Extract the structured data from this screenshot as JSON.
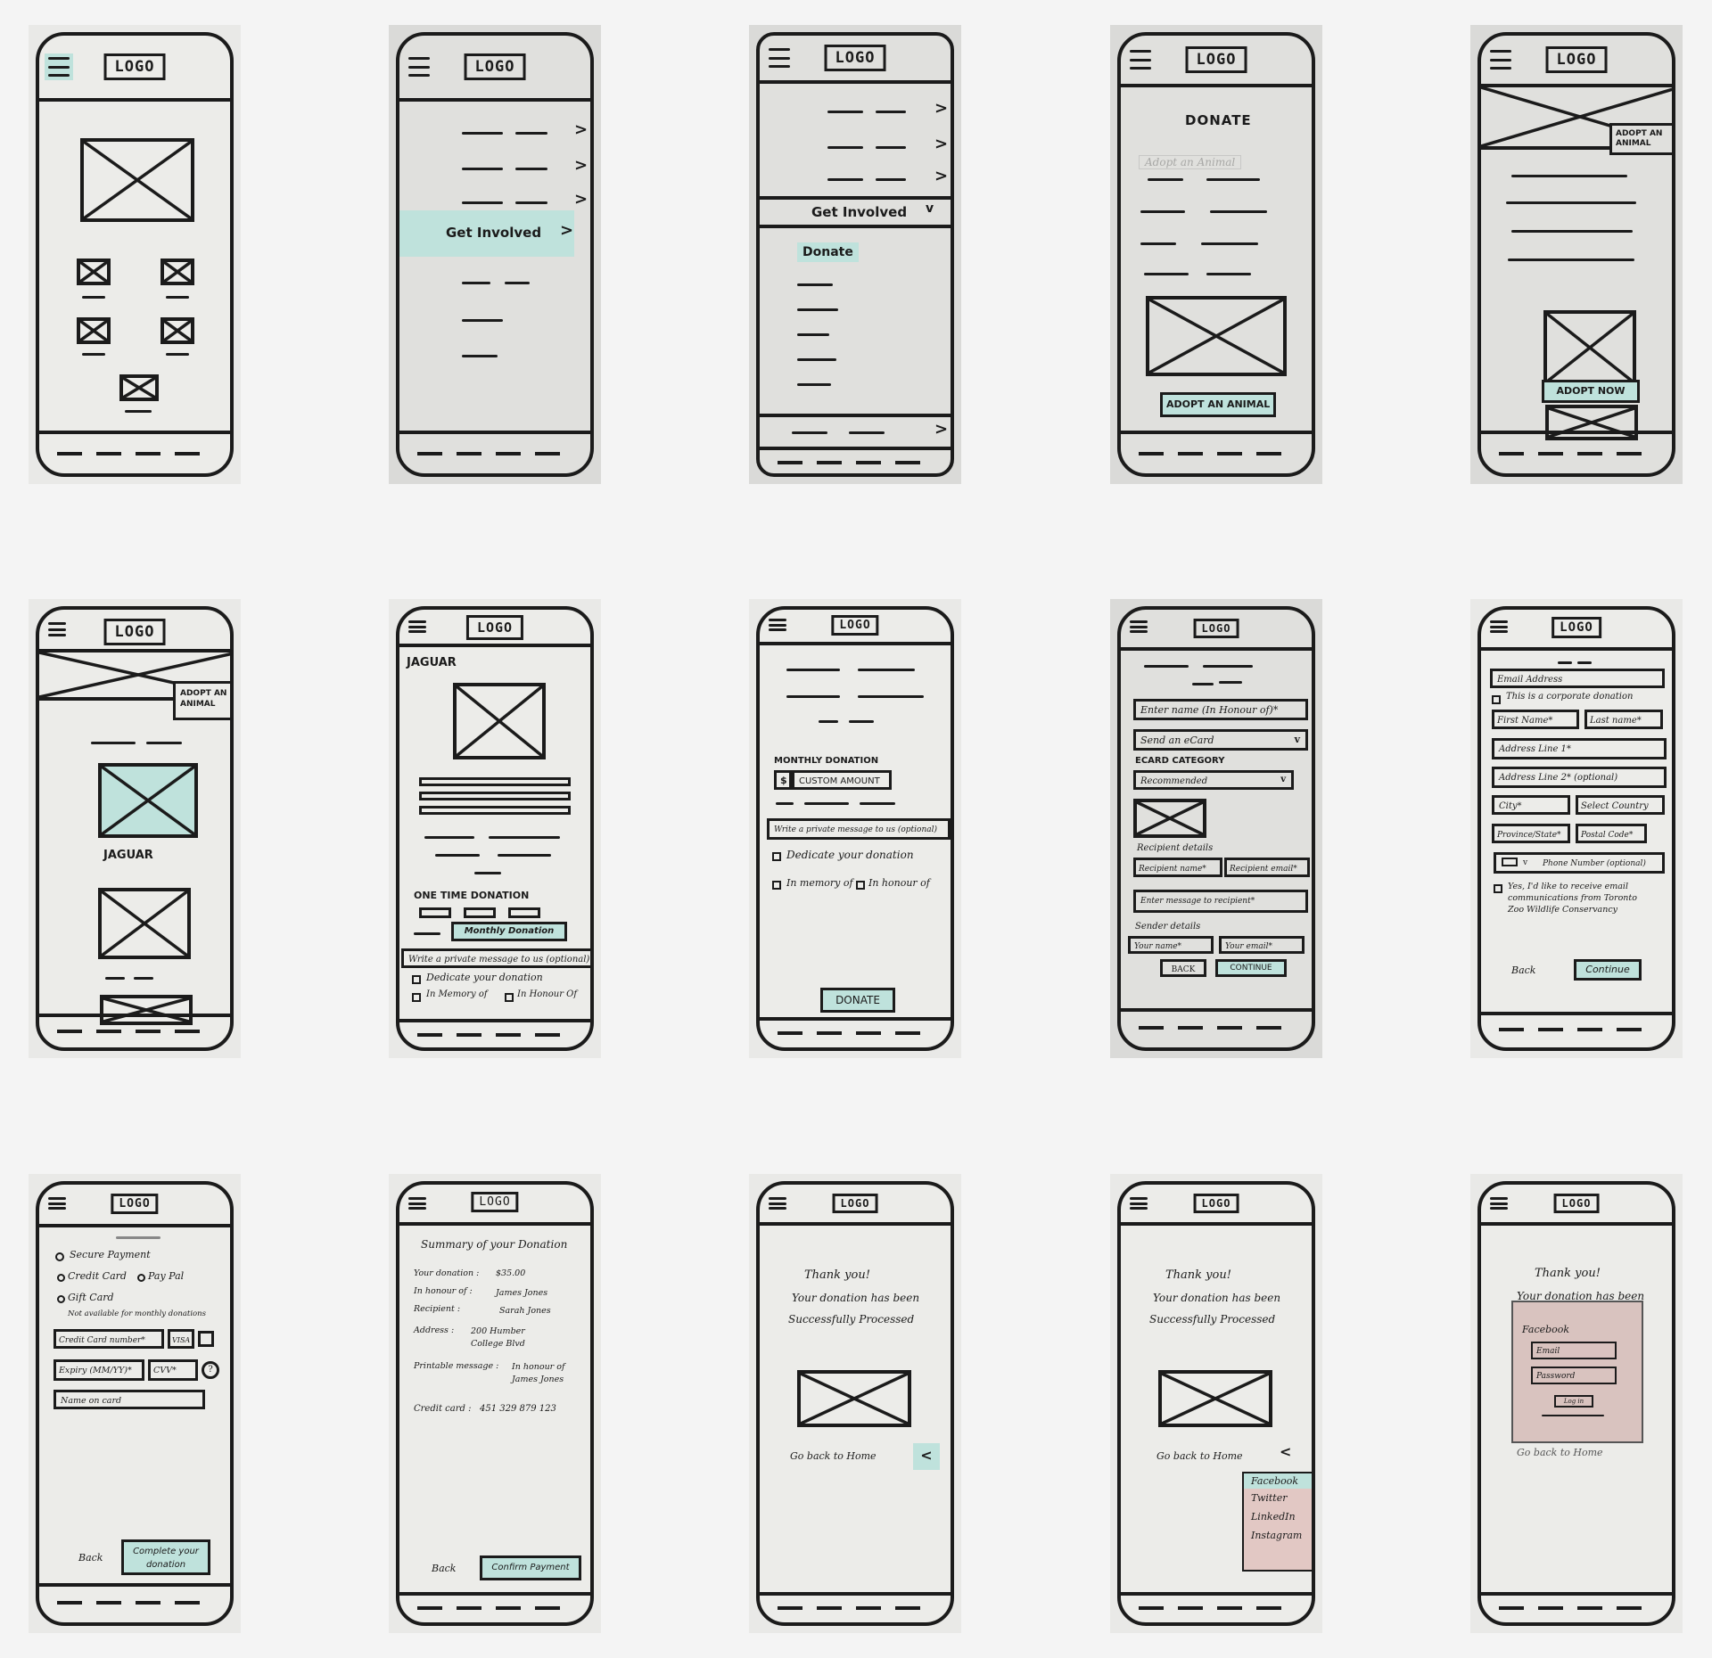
{
  "logo": "LOGO",
  "s2": {
    "menu_item": "Get Involved"
  },
  "s3": {
    "section": "Get Involved",
    "sub_item": "Donate"
  },
  "s4": {
    "title": "DONATE",
    "faded": "Adopt an Animal",
    "button": "ADOPT AN ANIMAL"
  },
  "s5": {
    "banner": "ADOPT AN ANIMAL",
    "button": "ADOPT NOW"
  },
  "s6": {
    "banner": "ADOPT AN ANIMAL",
    "caption": "JAGUAR"
  },
  "s7": {
    "title": "JAGUAR",
    "one_time": "ONE TIME DONATION",
    "monthly_button": "Monthly Donation",
    "message": "Write a private message to us (optional)",
    "dedicate": "Dedicate your donation",
    "in_memory": "In Memory of",
    "in_honour": "In Honour Of"
  },
  "s8": {
    "monthly": "MONTHLY DONATION",
    "currency": "$",
    "custom": "CUSTOM AMOUNT",
    "message": "Write a private message to us (optional)",
    "dedicate": "Dedicate your donation",
    "in_memory": "In memory of",
    "in_honour": "In honour of",
    "donate": "DONATE"
  },
  "s9": {
    "name": "Enter name (In Honour of)*",
    "ecard": "Send an eCard",
    "category_title": "ECARD CATEGORY",
    "category": "Recommended",
    "recipient_details": "Recipient details",
    "recipient_name": "Recipient name*",
    "recipient_email": "Recipient email*",
    "message": "Enter message to recipient*",
    "sender_details": "Sender details",
    "your_name": "Your name*",
    "your_email": "Your email*",
    "back": "BACK",
    "continue": "CONTINUE"
  },
  "s10": {
    "email": "Email Address",
    "corporate": "This is a corporate donation",
    "first": "First Name*",
    "last": "Last name*",
    "addr1": "Address Line 1*",
    "addr2": "Address Line 2* (optional)",
    "city": "City*",
    "country": "Select Country",
    "province": "Province/State*",
    "postal": "Postal Code*",
    "phone": "Phone Number (optional)",
    "opt_in": "Yes, I'd like to receive email communications from Toronto Zoo Wildlife Conservancy",
    "back": "Back",
    "continue": "Continue"
  },
  "s11": {
    "secure": "Secure Payment",
    "credit": "Credit Card",
    "paypal": "Pay Pal",
    "gift": "Gift Card",
    "gift_note": "Not available for monthly donations",
    "card_number": "Credit Card number*",
    "visa": "VISA",
    "expiry": "Expiry (MM/YY)*",
    "cvv": "CVV*",
    "help": "?",
    "name_on_card": "Name on card",
    "back": "Back",
    "complete": "Complete your donation"
  },
  "s12": {
    "title": "Summary of your Donation",
    "rows": [
      {
        "label": "Your donation :",
        "value": "$35.00"
      },
      {
        "label": "In honour of :",
        "value": "James Jones"
      },
      {
        "label": "Recipient :",
        "value": "Sarah Jones"
      },
      {
        "label": "Address :",
        "value": "200 Humber College Blvd"
      },
      {
        "label": "Printable message :",
        "value": "In honour of James Jones"
      },
      {
        "label": "Credit card :",
        "value": "451 329 879 123"
      }
    ],
    "back": "Back",
    "confirm": "Confirm Payment"
  },
  "thanks": {
    "line1": "Thank you!",
    "line2": "Your donation has been",
    "line3": "Successfully Processed",
    "home": "Go back to Home"
  },
  "s14": {
    "options": [
      "Facebook",
      "Twitter",
      "LinkedIn",
      "Instagram"
    ]
  },
  "s15": {
    "title": "Facebook",
    "email": "Email",
    "password": "Password",
    "login": "Log in"
  },
  "colors": {
    "accent": "#bfe2dc",
    "popup": "#e2c8c4",
    "ink": "#1b1b1b"
  }
}
